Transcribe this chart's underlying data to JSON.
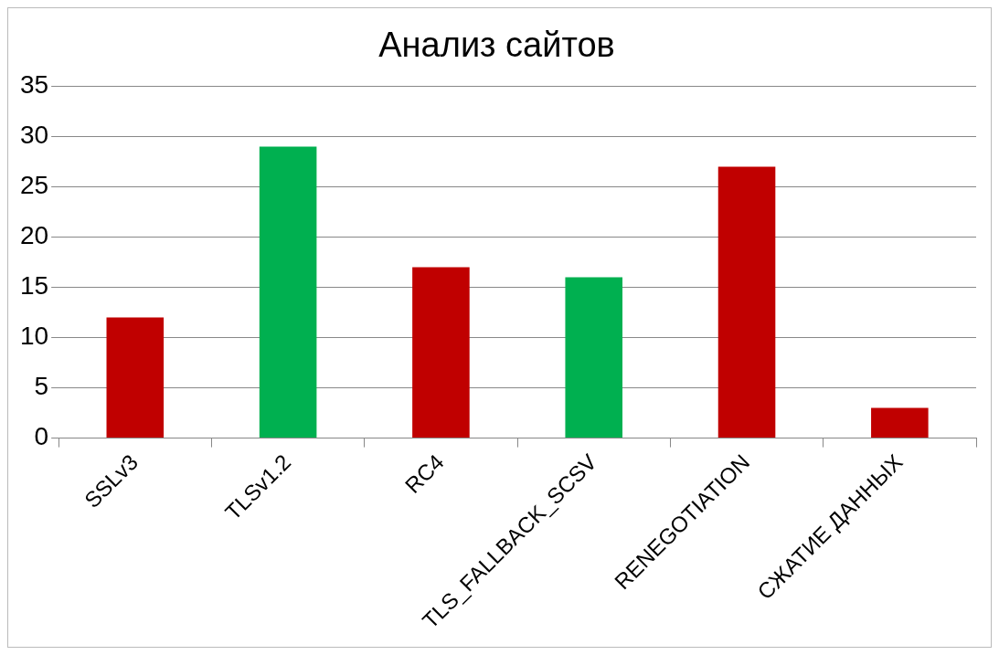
{
  "chart_data": {
    "type": "bar",
    "title": "Анализ сайтов",
    "categories": [
      "SSLv3",
      "TLSv1.2",
      "RC4",
      "TLS_FALLBACK_SCSV",
      "RENEGOTIATION",
      "СЖАТИЕ ДАННЫХ"
    ],
    "values": [
      12,
      29,
      17,
      16,
      27,
      3
    ],
    "colors": [
      "#c00000",
      "#00b050",
      "#c00000",
      "#00b050",
      "#c00000",
      "#c00000"
    ],
    "ylim": [
      0,
      35
    ],
    "yticks": [
      0,
      5,
      10,
      15,
      20,
      25,
      30,
      35
    ],
    "grid": "y",
    "legend": false
  }
}
